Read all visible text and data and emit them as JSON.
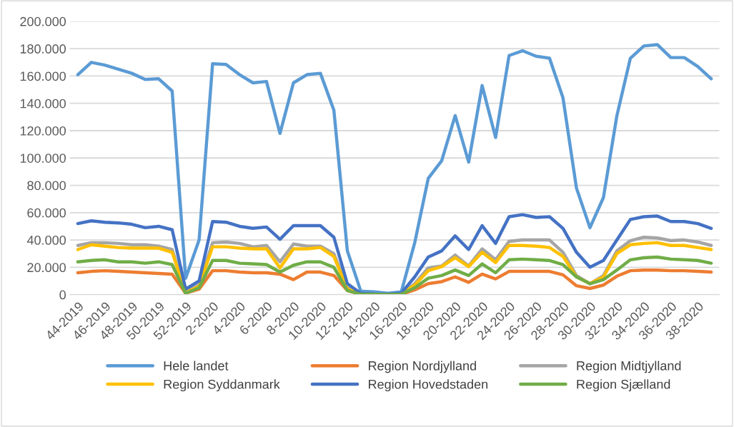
{
  "chart_data": {
    "type": "line",
    "categories": [
      "44-2019",
      null,
      "46-2019",
      null,
      "48-2019",
      null,
      "50-2019",
      null,
      "52-2019",
      null,
      "2-2020",
      null,
      "4-2020",
      null,
      "6-2020",
      null,
      "8-2020",
      null,
      "10-2020",
      null,
      "12-2020",
      null,
      "14-2020",
      null,
      "16-2020",
      null,
      "18-2020",
      null,
      "20-2020",
      null,
      "22-2020",
      null,
      "24-2020",
      null,
      "26-2020",
      null,
      "28-2020",
      null,
      "30-2020",
      null,
      "32-2020",
      null,
      "34-2020",
      null,
      "36-2020",
      null,
      "38-2020",
      null
    ],
    "series": [
      {
        "name": "Hele landet",
        "color": "#5b9bd5",
        "values": [
          161000,
          170000,
          168000,
          165000,
          162000,
          157500,
          158000,
          149000,
          12000,
          40000,
          169000,
          168500,
          161000,
          155000,
          156000,
          118000,
          155000,
          161000,
          162000,
          135000,
          32000,
          2500,
          2000,
          1000,
          2000,
          38000,
          85000,
          98000,
          131000,
          97000,
          153000,
          115000,
          175000,
          178500,
          174500,
          173000,
          144000,
          78000,
          49000,
          71000,
          131000,
          173000,
          182000,
          183000,
          173500,
          173500,
          167000,
          158000
        ]
      },
      {
        "name": "Region Nordjylland",
        "color": "#ed7d31",
        "values": [
          16000,
          17000,
          17500,
          17000,
          16500,
          16000,
          15500,
          15000,
          1000,
          4000,
          17500,
          17500,
          16500,
          16000,
          16000,
          15000,
          11000,
          16500,
          16500,
          14000,
          3000,
          300,
          100,
          100,
          200,
          3500,
          8000,
          9500,
          13000,
          9000,
          15000,
          11500,
          17000,
          17000,
          17000,
          17000,
          14500,
          6500,
          4500,
          7000,
          13500,
          17500,
          18000,
          18000,
          17500,
          17500,
          17000,
          16500
        ]
      },
      {
        "name": "Region Midtjylland",
        "color": "#a5a5a5",
        "values": [
          36000,
          38000,
          38000,
          37500,
          36500,
          36500,
          35500,
          33000,
          2000,
          7000,
          38000,
          38500,
          37500,
          35000,
          36000,
          24000,
          37000,
          35500,
          35500,
          30000,
          5000,
          500,
          300,
          200,
          500,
          8000,
          19500,
          21000,
          29000,
          21000,
          33500,
          25500,
          39000,
          40000,
          40000,
          40000,
          31000,
          14000,
          8000,
          14000,
          32000,
          39500,
          42000,
          41500,
          39500,
          40000,
          38500,
          36000
        ]
      },
      {
        "name": "Region Syddanmark",
        "color": "#ffc000",
        "values": [
          33000,
          36500,
          35500,
          34500,
          34000,
          34000,
          34000,
          31000,
          1500,
          6000,
          35000,
          35000,
          34000,
          33500,
          33500,
          19500,
          33500,
          33500,
          34500,
          28000,
          4000,
          500,
          200,
          200,
          500,
          7000,
          17500,
          20500,
          27000,
          20500,
          31000,
          23500,
          36000,
          36000,
          35500,
          34500,
          28000,
          13000,
          8000,
          13000,
          30000,
          36500,
          37500,
          38000,
          36000,
          36000,
          34500,
          33000
        ]
      },
      {
        "name": "Region Hovedstaden",
        "color": "#4472c4",
        "values": [
          52000,
          54000,
          53000,
          52500,
          51500,
          49000,
          50000,
          47500,
          4000,
          10000,
          53500,
          53000,
          50000,
          48500,
          49500,
          40500,
          50500,
          50500,
          50500,
          42000,
          8000,
          1000,
          500,
          300,
          1000,
          13000,
          27500,
          32000,
          43000,
          33000,
          50500,
          37500,
          57000,
          58500,
          56500,
          57000,
          48500,
          31000,
          20000,
          25000,
          40000,
          55000,
          57000,
          57500,
          53500,
          53500,
          52000,
          48500
        ]
      },
      {
        "name": "Region Sjælland",
        "color": "#70ad47",
        "values": [
          24000,
          25000,
          25500,
          24000,
          24000,
          23000,
          24000,
          22000,
          1000,
          5000,
          25000,
          25000,
          23000,
          22500,
          22000,
          16500,
          21500,
          24000,
          24000,
          20000,
          3000,
          300,
          200,
          100,
          300,
          5000,
          12000,
          14000,
          18000,
          14000,
          22500,
          16000,
          25500,
          26000,
          25500,
          25000,
          22000,
          13000,
          8000,
          11000,
          18000,
          25500,
          27000,
          27500,
          26000,
          25500,
          25000,
          23000
        ]
      }
    ],
    "ylim": [
      0,
      200000
    ],
    "yticks": [
      {
        "value": 0,
        "label": "0"
      },
      {
        "value": 20000,
        "label": "20.000"
      },
      {
        "value": 40000,
        "label": "40.000"
      },
      {
        "value": 60000,
        "label": "60.000"
      },
      {
        "value": 80000,
        "label": "80.000"
      },
      {
        "value": 100000,
        "label": "100.000"
      },
      {
        "value": 120000,
        "label": "120.000"
      },
      {
        "value": 140000,
        "label": "140.000"
      },
      {
        "value": 160000,
        "label": "160.000"
      },
      {
        "value": 180000,
        "label": "180.000"
      },
      {
        "value": 200000,
        "label": "200.000"
      }
    ],
    "grid": "y",
    "legend": "bottom",
    "marker": "none",
    "line_style": "solid"
  }
}
